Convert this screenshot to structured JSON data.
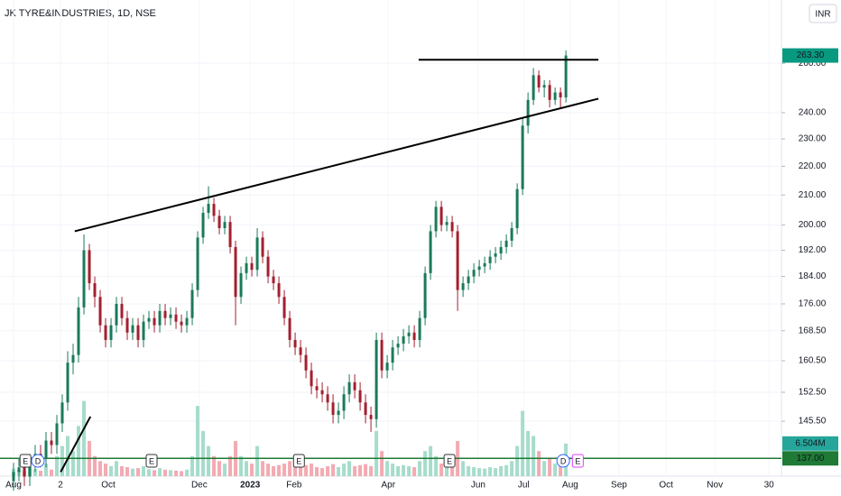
{
  "chart_data": {
    "type": "candlestick",
    "title": "JK TYRE&INDUSTRIES, 1D, NSE",
    "currency": "INR",
    "log_scale": true,
    "grid": true,
    "up_color": "#1b7a5a",
    "down_color": "#a3202f",
    "volume_up_color": "#a6dccb",
    "volume_down_color": "#f3aab2",
    "xlim": [
      -2.5,
      141.8
    ],
    "xticks": [
      {
        "value": 0,
        "label": "Aug"
      },
      {
        "value": 8.67,
        "label": "2"
      },
      {
        "value": 17.5,
        "label": "Oct"
      },
      {
        "value": 34.3,
        "label": "Dec"
      },
      {
        "value": 43.7,
        "label": "2023",
        "bold": true
      },
      {
        "value": 51.8,
        "label": "Feb"
      },
      {
        "value": 69.2,
        "label": "Apr"
      },
      {
        "value": 85.8,
        "label": "Jun"
      },
      {
        "value": 94.2,
        "label": "Jul"
      },
      {
        "value": 102.8,
        "label": "Aug"
      },
      {
        "value": 111.8,
        "label": "Sep"
      },
      {
        "value": 120.5,
        "label": "Oct"
      },
      {
        "value": 129.5,
        "label": "Nov"
      },
      {
        "value": 139.5,
        "label": "30"
      }
    ],
    "ylim": [
      133.1,
      288.1
    ],
    "yticks": [
      {
        "value": 145.5,
        "label": "145.50"
      },
      {
        "value": 152.5,
        "label": "152.50"
      },
      {
        "value": 160.5,
        "label": "160.50"
      },
      {
        "value": 168.5,
        "label": "168.50"
      },
      {
        "value": 176,
        "label": "176.00"
      },
      {
        "value": 184,
        "label": "184.00"
      },
      {
        "value": 192,
        "label": "192.00"
      },
      {
        "value": 200,
        "label": "200.00"
      },
      {
        "value": 210,
        "label": "210.00"
      },
      {
        "value": 220,
        "label": "220.00"
      },
      {
        "value": 230,
        "label": "230.00"
      },
      {
        "value": 240,
        "label": "240.00"
      },
      {
        "value": 260,
        "label": "260.00"
      }
    ],
    "open": [
      132,
      134,
      135,
      133,
      136,
      138,
      137,
      141,
      140,
      145,
      150,
      160,
      162,
      175,
      192,
      182,
      178,
      170,
      166,
      170,
      176,
      172,
      168,
      170,
      166,
      171,
      172,
      170,
      174,
      172,
      173,
      171,
      170,
      172,
      180,
      196,
      204,
      207,
      203,
      199,
      201,
      193,
      178,
      185,
      188,
      186,
      196,
      190,
      184,
      182,
      178,
      172,
      166,
      164,
      162,
      158,
      154,
      153,
      152,
      150,
      147,
      148,
      152,
      155,
      153,
      150,
      147,
      146,
      166,
      158,
      160,
      164,
      165,
      167,
      168,
      166,
      172,
      185,
      198,
      206,
      200,
      201,
      198,
      180,
      182,
      184,
      186,
      187,
      188,
      190,
      191,
      193,
      195,
      199,
      212,
      235,
      245,
      255,
      250,
      251,
      245,
      248,
      246
    ],
    "high": [
      136,
      137,
      137,
      138,
      140,
      140,
      143,
      143,
      147,
      152,
      163,
      165,
      178,
      197,
      194,
      184,
      180,
      172,
      172,
      178,
      178,
      174,
      172,
      172,
      173,
      174,
      174,
      176,
      176,
      175,
      175,
      173,
      174,
      182,
      198,
      206,
      213,
      209,
      205,
      203,
      203,
      195,
      187,
      190,
      190,
      199,
      198,
      192,
      186,
      184,
      180,
      174,
      168,
      166,
      164,
      160,
      156,
      155,
      154,
      152,
      150,
      154,
      157,
      157,
      155,
      152,
      149,
      168,
      168,
      162,
      166,
      167,
      169,
      170,
      170,
      174,
      187,
      200,
      208,
      208,
      203,
      203,
      200,
      184,
      186,
      188,
      189,
      190,
      192,
      193,
      195,
      197,
      201,
      214,
      238,
      248,
      258,
      257,
      253,
      253,
      250,
      250,
      265.5
    ],
    "low": [
      130,
      132,
      131,
      131,
      134,
      135,
      135,
      138,
      138,
      143,
      148,
      157,
      160,
      173,
      180,
      175,
      168,
      164,
      164,
      168,
      170,
      166,
      166,
      164,
      164,
      169,
      168,
      168,
      170,
      170,
      169,
      168,
      168,
      170,
      178,
      194,
      202,
      201,
      197,
      197,
      191,
      170,
      176,
      183,
      184,
      184,
      188,
      182,
      180,
      176,
      170,
      164,
      162,
      160,
      156,
      152,
      151,
      150,
      148,
      145,
      145,
      146,
      150,
      151,
      148,
      145,
      143,
      144,
      156,
      156,
      158,
      162,
      163,
      165,
      164,
      164,
      170,
      183,
      196,
      198,
      198,
      196,
      174,
      178,
      180,
      182,
      184,
      185,
      186,
      188,
      189,
      191,
      193,
      197,
      210,
      232,
      243,
      248,
      246,
      242,
      243,
      242,
      244
    ],
    "close": [
      134,
      135,
      133,
      136,
      138,
      137,
      141,
      140,
      145,
      150,
      160,
      162,
      175,
      192,
      182,
      178,
      170,
      166,
      170,
      176,
      172,
      168,
      170,
      166,
      171,
      172,
      170,
      174,
      172,
      173,
      171,
      170,
      172,
      180,
      196,
      204,
      207,
      203,
      199,
      201,
      193,
      178,
      185,
      188,
      186,
      196,
      190,
      184,
      182,
      178,
      172,
      166,
      164,
      162,
      158,
      154,
      153,
      152,
      150,
      147,
      148,
      152,
      155,
      153,
      150,
      147,
      146,
      166,
      158,
      160,
      164,
      165,
      167,
      168,
      166,
      172,
      185,
      198,
      206,
      200,
      201,
      198,
      180,
      182,
      184,
      186,
      187,
      188,
      190,
      191,
      193,
      195,
      199,
      212,
      235,
      245,
      255,
      250,
      251,
      245,
      248,
      246,
      263.3
    ],
    "volume": [
      1.5,
      1.2,
      1,
      1.8,
      1.4,
      1.1,
      2.5,
      1.3,
      4,
      6,
      8,
      5,
      10,
      15,
      7,
      4,
      3,
      2.5,
      2,
      3,
      2,
      1.8,
      1.5,
      1.6,
      2,
      1.4,
      1.2,
      1.6,
      1.3,
      1.2,
      1.1,
      1,
      1.3,
      4,
      14,
      9,
      6,
      4,
      3,
      2.5,
      4,
      7,
      4,
      3,
      2.5,
      6,
      3,
      2.5,
      2,
      2.2,
      2.5,
      3,
      2,
      1.8,
      2.2,
      2.5,
      1.8,
      1.6,
      2,
      2.4,
      1.8,
      2.5,
      3,
      2,
      2.2,
      2.4,
      2,
      9,
      5,
      3,
      2.5,
      2,
      2.2,
      2,
      1.8,
      3,
      5,
      6,
      4,
      2.5,
      2,
      2.5,
      7,
      3,
      2,
      1.8,
      1.6,
      1.5,
      1.8,
      1.6,
      2,
      2.2,
      3,
      6,
      13,
      9,
      8,
      5,
      3,
      3.5,
      2.5,
      2.2,
      6.504
    ],
    "volume_lim": [
      0,
      23
    ],
    "last_volume": {
      "value": 6.504,
      "label": "6.504M"
    },
    "last_price": {
      "value": 263.3,
      "label": "263.30"
    },
    "hline": {
      "value": 137,
      "label": "137.00",
      "color": "#1e7a34"
    },
    "trend_lines": [
      {
        "points": [
          [
            11.3,
            198
          ],
          [
            108,
            245.5
          ]
        ]
      },
      {
        "points": [
          [
            74.8,
            261.5
          ],
          [
            108,
            261.5
          ]
        ]
      },
      {
        "points": [
          [
            8.7,
            134
          ],
          [
            14.2,
            146.6
          ]
        ]
      }
    ],
    "events": [
      {
        "label": "E",
        "index": 2.2,
        "color": "#333333"
      },
      {
        "label": "D",
        "index": 4.5,
        "color": "#2962ff"
      },
      {
        "label": "E",
        "index": 25.5,
        "color": "#333333"
      },
      {
        "label": "E",
        "index": 52.7,
        "color": "#333333"
      },
      {
        "label": "E",
        "index": 80.5,
        "color": "#333333"
      },
      {
        "label": "D",
        "index": 101.5,
        "color": "#2962ff"
      },
      {
        "label": "E",
        "index": 104.2,
        "color": "#e040fb"
      }
    ]
  }
}
